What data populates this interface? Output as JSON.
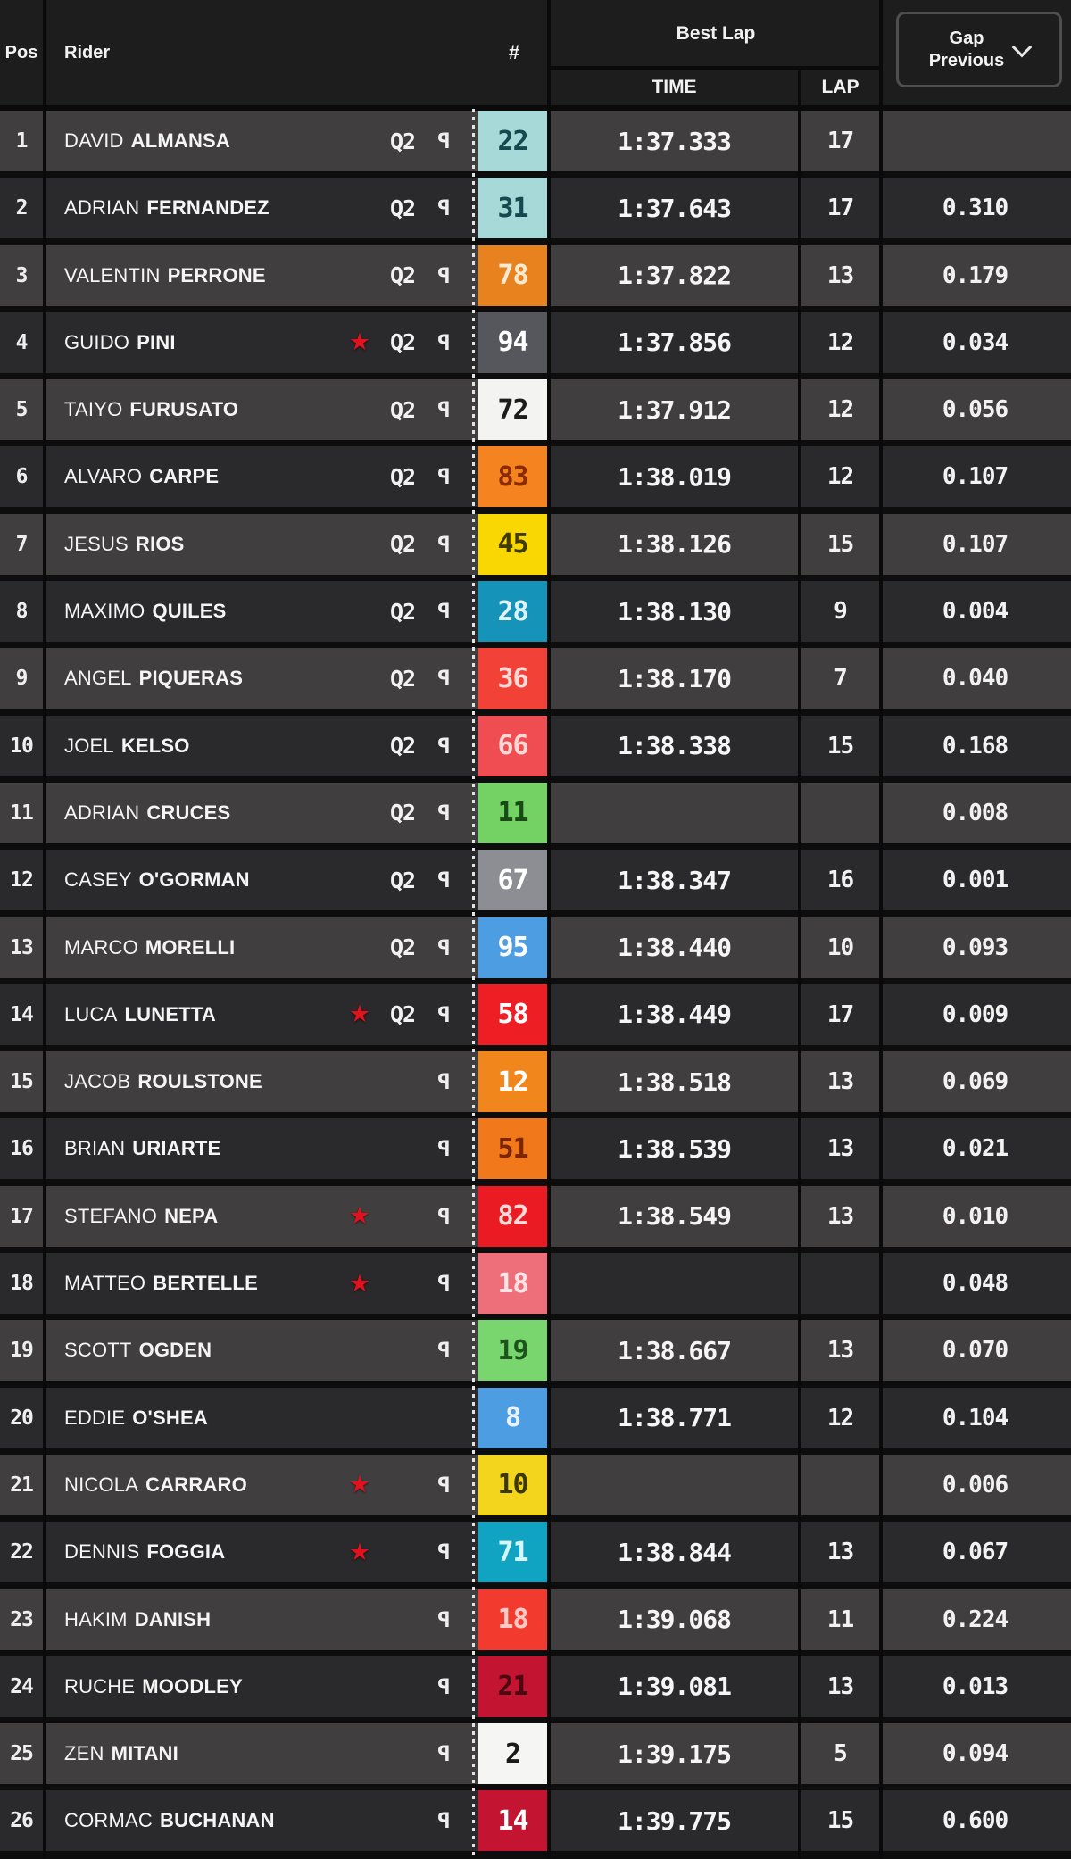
{
  "header": {
    "pos": "Pos",
    "rider": "Rider",
    "number": "#",
    "best_lap": "Best Lap",
    "time": "TIME",
    "lap": "LAP",
    "gap_previous": "Gap\nPrevious"
  },
  "labels": {
    "q2": "Q2"
  },
  "icons": {
    "star": "★",
    "pit": "P",
    "chevron": "chevron-down"
  },
  "colors": {
    "header_bg": "#1d1d1e",
    "row_odd": "#403e3f",
    "row_even": "#2a292b",
    "text": "#f2f2f2",
    "star_red": "#e1121d",
    "gap_button_border": "#4e4e4e"
  },
  "rows": [
    {
      "pos": "1",
      "first": "DAVID",
      "last": "ALMANSA",
      "star": false,
      "q2": true,
      "pit": true,
      "num": "22",
      "num_bg": "#a6d9d7",
      "num_fg": "#16494f",
      "time": "1:37.333",
      "lap": "17",
      "gap": ""
    },
    {
      "pos": "2",
      "first": "ADRIAN",
      "last": "FERNANDEZ",
      "star": false,
      "q2": true,
      "pit": true,
      "num": "31",
      "num_bg": "#a6d9d7",
      "num_fg": "#16494f",
      "time": "1:37.643",
      "lap": "17",
      "gap": "0.310"
    },
    {
      "pos": "3",
      "first": "VALENTIN",
      "last": "PERRONE",
      "star": false,
      "q2": true,
      "pit": true,
      "num": "78",
      "num_bg": "#e8821e",
      "num_fg": "#f6ead2",
      "time": "1:37.822",
      "lap": "13",
      "gap": "0.179"
    },
    {
      "pos": "4",
      "first": "GUIDO",
      "last": "PINI",
      "star": true,
      "q2": true,
      "pit": true,
      "num": "94",
      "num_bg": "#56575c",
      "num_fg": "#ffffff",
      "time": "1:37.856",
      "lap": "12",
      "gap": "0.034"
    },
    {
      "pos": "5",
      "first": "TAIYO",
      "last": "FURUSATO",
      "star": false,
      "q2": true,
      "pit": true,
      "num": "72",
      "num_bg": "#f3f3f1",
      "num_fg": "#1c1c1c",
      "time": "1:37.912",
      "lap": "12",
      "gap": "0.056"
    },
    {
      "pos": "6",
      "first": "ALVARO",
      "last": "CARPE",
      "star": false,
      "q2": true,
      "pit": true,
      "num": "83",
      "num_bg": "#f5831f",
      "num_fg": "#8a2a00",
      "time": "1:38.019",
      "lap": "12",
      "gap": "0.107"
    },
    {
      "pos": "7",
      "first": "JESUS",
      "last": "RIOS",
      "star": false,
      "q2": true,
      "pit": true,
      "num": "45",
      "num_bg": "#f8d703",
      "num_fg": "#403a00",
      "time": "1:38.126",
      "lap": "15",
      "gap": "0.107"
    },
    {
      "pos": "8",
      "first": "MAXIMO",
      "last": "QUILES",
      "star": false,
      "q2": true,
      "pit": true,
      "num": "28",
      "num_bg": "#1693b9",
      "num_fg": "#dff3f8",
      "time": "1:38.130",
      "lap": "9",
      "gap": "0.004"
    },
    {
      "pos": "9",
      "first": "ANGEL",
      "last": "PIQUERAS",
      "star": false,
      "q2": true,
      "pit": true,
      "num": "36",
      "num_bg": "#f24136",
      "num_fg": "#ffd9d5",
      "time": "1:38.170",
      "lap": "7",
      "gap": "0.040"
    },
    {
      "pos": "10",
      "first": "JOEL",
      "last": "KELSO",
      "star": false,
      "q2": true,
      "pit": true,
      "num": "66",
      "num_bg": "#ef4d52",
      "num_fg": "#ffd9d5",
      "time": "1:38.338",
      "lap": "15",
      "gap": "0.168"
    },
    {
      "pos": "11",
      "first": "ADRIAN",
      "last": "CRUCES",
      "star": false,
      "q2": true,
      "pit": true,
      "num": "11",
      "num_bg": "#74d163",
      "num_fg": "#174a17",
      "time": "",
      "lap": "",
      "gap": "0.008"
    },
    {
      "pos": "12",
      "first": "CASEY",
      "last": "O'GORMAN",
      "star": false,
      "q2": true,
      "pit": true,
      "num": "67",
      "num_bg": "#8d8d94",
      "num_fg": "#ffffff",
      "time": "1:38.347",
      "lap": "16",
      "gap": "0.001"
    },
    {
      "pos": "13",
      "first": "MARCO",
      "last": "MORELLI",
      "star": false,
      "q2": true,
      "pit": true,
      "num": "95",
      "num_bg": "#4d9de2",
      "num_fg": "#ffffff",
      "time": "1:38.440",
      "lap": "10",
      "gap": "0.093"
    },
    {
      "pos": "14",
      "first": "LUCA",
      "last": "LUNETTA",
      "star": true,
      "q2": true,
      "pit": true,
      "num": "58",
      "num_bg": "#ed1f24",
      "num_fg": "#ffffff",
      "time": "1:38.449",
      "lap": "17",
      "gap": "0.009"
    },
    {
      "pos": "15",
      "first": "JACOB",
      "last": "ROULSTONE",
      "star": false,
      "q2": false,
      "pit": true,
      "num": "12",
      "num_bg": "#f1861d",
      "num_fg": "#ffffff",
      "time": "1:38.518",
      "lap": "13",
      "gap": "0.069"
    },
    {
      "pos": "16",
      "first": "BRIAN",
      "last": "URIARTE",
      "star": false,
      "q2": false,
      "pit": true,
      "num": "51",
      "num_bg": "#f1791b",
      "num_fg": "#7a2500",
      "time": "1:38.539",
      "lap": "13",
      "gap": "0.021"
    },
    {
      "pos": "17",
      "first": "STEFANO",
      "last": "NEPA",
      "star": true,
      "q2": false,
      "pit": true,
      "num": "82",
      "num_bg": "#ea1b23",
      "num_fg": "#ffd9d5",
      "time": "1:38.549",
      "lap": "13",
      "gap": "0.010"
    },
    {
      "pos": "18",
      "first": "MATTEO",
      "last": "BERTELLE",
      "star": true,
      "q2": false,
      "pit": true,
      "num": "18",
      "num_bg": "#ee6f7a",
      "num_fg": "#ffe3e5",
      "time": "",
      "lap": "",
      "gap": "0.048"
    },
    {
      "pos": "19",
      "first": "SCOTT",
      "last": "OGDEN",
      "star": false,
      "q2": false,
      "pit": true,
      "num": "19",
      "num_bg": "#79d56d",
      "num_fg": "#1c541c",
      "time": "1:38.667",
      "lap": "13",
      "gap": "0.070"
    },
    {
      "pos": "20",
      "first": "EDDIE",
      "last": "O'SHEA",
      "star": false,
      "q2": false,
      "pit": false,
      "num": "8",
      "num_bg": "#4d9de2",
      "num_fg": "#eaf3fc",
      "time": "1:38.771",
      "lap": "12",
      "gap": "0.104"
    },
    {
      "pos": "21",
      "first": "NICOLA",
      "last": "CARRARO",
      "star": true,
      "q2": false,
      "pit": true,
      "num": "10",
      "num_bg": "#f3d51e",
      "num_fg": "#3d3800",
      "time": "",
      "lap": "",
      "gap": "0.006"
    },
    {
      "pos": "22",
      "first": "DENNIS",
      "last": "FOGGIA",
      "star": true,
      "q2": false,
      "pit": true,
      "num": "71",
      "num_bg": "#10a3c2",
      "num_fg": "#d7f5fa",
      "time": "1:38.844",
      "lap": "13",
      "gap": "0.067"
    },
    {
      "pos": "23",
      "first": "HAKIM",
      "last": "DANISH",
      "star": false,
      "q2": false,
      "pit": true,
      "num": "18",
      "num_bg": "#f23a2e",
      "num_fg": "#ffc9c4",
      "time": "1:39.068",
      "lap": "11",
      "gap": "0.224"
    },
    {
      "pos": "24",
      "first": "RUCHE",
      "last": "MOODLEY",
      "star": false,
      "q2": false,
      "pit": true,
      "num": "21",
      "num_bg": "#c31432",
      "num_fg": "#4a0812",
      "time": "1:39.081",
      "lap": "13",
      "gap": "0.013"
    },
    {
      "pos": "25",
      "first": "ZEN",
      "last": "MITANI",
      "star": false,
      "q2": false,
      "pit": true,
      "num": "2",
      "num_bg": "#f5f5f3",
      "num_fg": "#1a1a1a",
      "time": "1:39.175",
      "lap": "5",
      "gap": "0.094"
    },
    {
      "pos": "26",
      "first": "CORMAC",
      "last": "BUCHANAN",
      "star": false,
      "q2": false,
      "pit": true,
      "num": "14",
      "num_bg": "#c31432",
      "num_fg": "#ffffff",
      "time": "1:39.775",
      "lap": "15",
      "gap": "0.600"
    }
  ]
}
